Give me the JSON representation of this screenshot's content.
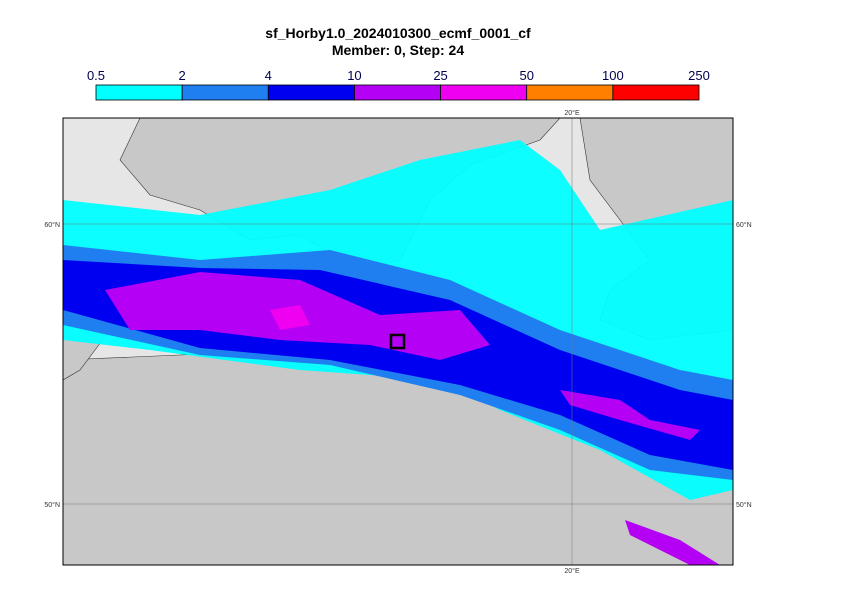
{
  "title": "sf_Horby1.0_2024010300_ecmf_0001_cf",
  "subtitle": "Member: 0, Step: 24",
  "legend": {
    "levels": [
      0.5,
      2,
      4,
      10,
      25,
      50,
      100,
      250
    ],
    "colors": [
      "#00ffff",
      "#1f7ff0",
      "#0000f0",
      "#b400f5",
      "#f000f0",
      "#ff8000",
      "#ff0000"
    ]
  },
  "map": {
    "lat_labels": [
      "60°N",
      "50°N"
    ],
    "lon_labels": [
      "20°E"
    ]
  }
}
